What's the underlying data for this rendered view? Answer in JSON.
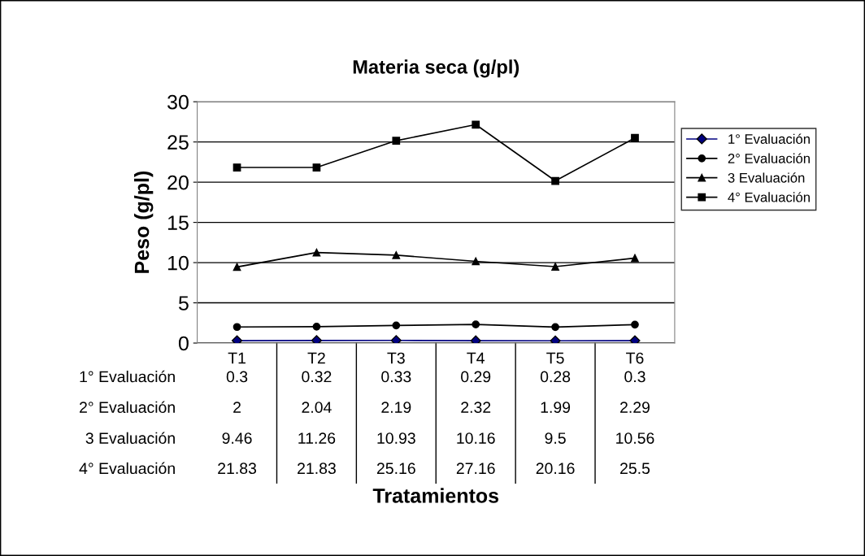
{
  "chart_data": {
    "type": "line",
    "title": "Materia seca (g/pl)",
    "annotations": [
      "Tratamientos"
    ],
    "ylabel": "Peso (g/pl)",
    "categories": [
      "T1",
      "T2",
      "T3",
      "T4",
      "T5",
      "T6"
    ],
    "series": [
      {
        "name": "1° Evaluación",
        "color": "#000080",
        "marker": "diamond",
        "values": [
          0.3,
          0.32,
          0.33,
          0.29,
          0.28,
          0.3
        ]
      },
      {
        "name": "2° Evaluación",
        "color": "#000000",
        "marker": "circle",
        "values": [
          2,
          2.04,
          2.19,
          2.32,
          1.99,
          2.29
        ]
      },
      {
        "name": "3 Evaluación",
        "color": "#000000",
        "marker": "triangle",
        "values": [
          9.46,
          11.26,
          10.93,
          10.16,
          9.5,
          10.56
        ]
      },
      {
        "name": "4° Evaluación",
        "color": "#000000",
        "marker": "square",
        "values": [
          21.83,
          21.83,
          25.16,
          27.16,
          20.16,
          25.5
        ]
      }
    ],
    "ylim": [
      0,
      30
    ],
    "yticks": [
      0,
      5,
      10,
      15,
      20,
      25,
      30
    ],
    "grid": "y",
    "legend": "right",
    "data_labels": true
  }
}
